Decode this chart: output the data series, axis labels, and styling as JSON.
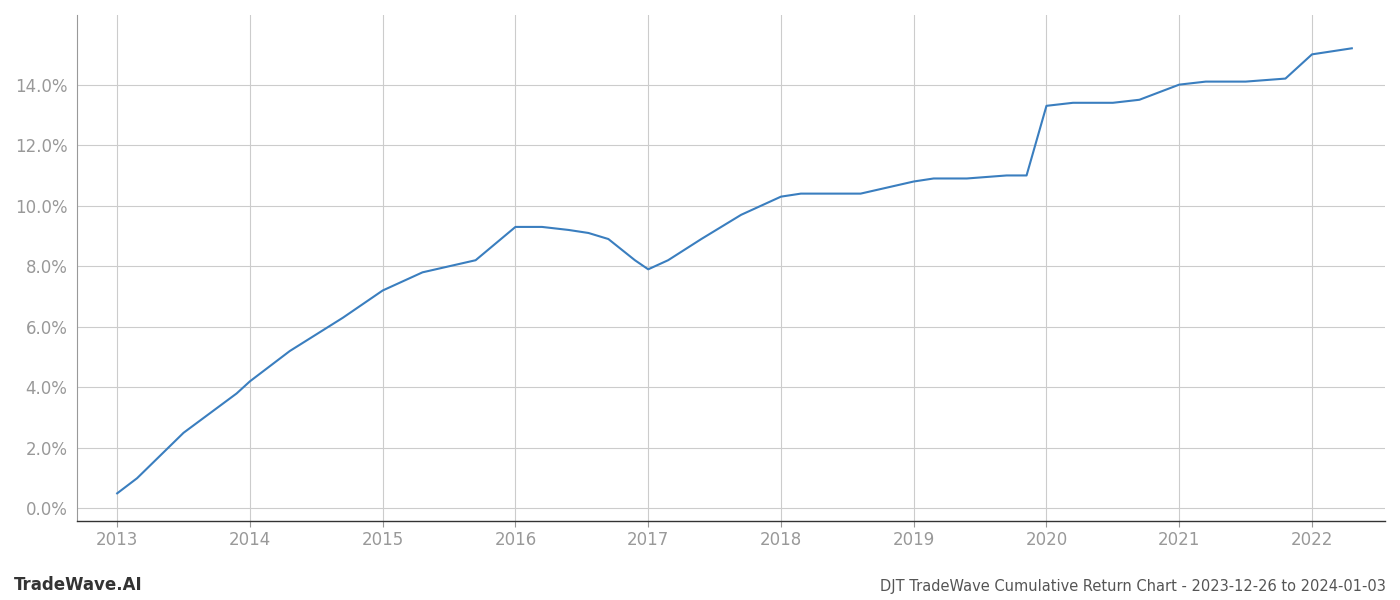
{
  "x_values": [
    2013.0,
    2013.15,
    2013.5,
    2013.9,
    2014.0,
    2014.3,
    2014.7,
    2015.0,
    2015.3,
    2015.7,
    2016.0,
    2016.2,
    2016.4,
    2016.55,
    2016.7,
    2016.9,
    2017.0,
    2017.15,
    2017.4,
    2017.7,
    2018.0,
    2018.15,
    2018.3,
    2018.6,
    2019.0,
    2019.15,
    2019.4,
    2019.7,
    2019.85,
    2020.0,
    2020.2,
    2020.5,
    2020.7,
    2021.0,
    2021.2,
    2021.5,
    2021.8,
    2022.0,
    2022.3
  ],
  "y_values": [
    0.005,
    0.01,
    0.025,
    0.038,
    0.042,
    0.052,
    0.063,
    0.072,
    0.078,
    0.082,
    0.093,
    0.093,
    0.092,
    0.091,
    0.089,
    0.082,
    0.079,
    0.082,
    0.089,
    0.097,
    0.103,
    0.104,
    0.104,
    0.104,
    0.108,
    0.109,
    0.109,
    0.11,
    0.11,
    0.133,
    0.134,
    0.134,
    0.135,
    0.14,
    0.141,
    0.141,
    0.142,
    0.15,
    0.152
  ],
  "line_color": "#3a7ebf",
  "line_width": 1.5,
  "title": "DJT TradeWave Cumulative Return Chart - 2023-12-26 to 2024-01-03",
  "watermark": "TradeWave.AI",
  "x_ticks": [
    2013,
    2014,
    2015,
    2016,
    2017,
    2018,
    2019,
    2020,
    2021,
    2022
  ],
  "y_ticks": [
    0.0,
    0.02,
    0.04,
    0.06,
    0.08,
    0.1,
    0.12,
    0.14
  ],
  "xlim": [
    2012.7,
    2022.55
  ],
  "ylim": [
    -0.004,
    0.163
  ],
  "background_color": "#ffffff",
  "grid_color": "#cccccc",
  "tick_color": "#999999"
}
